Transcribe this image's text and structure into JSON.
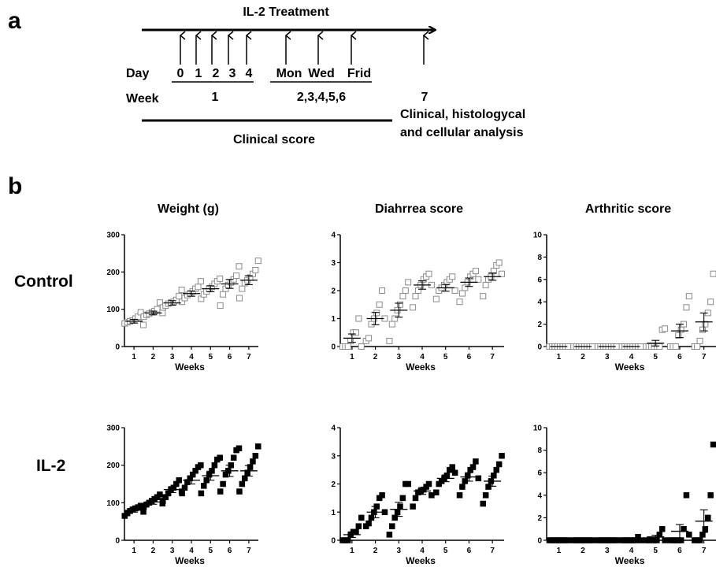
{
  "panel_a": {
    "letter": "a",
    "title": "IL-2 Treatment",
    "day_label": "Day",
    "week_label": "Week",
    "days": [
      "0",
      "1",
      "2",
      "3",
      "4",
      "Mon",
      "Wed",
      "Frid"
    ],
    "week1": "1",
    "weeks_rest": "2,3,4,5,6",
    "week_final": "7",
    "analysis_line1": "Clinical, histologycal",
    "analysis_line2": "and cellular analysis",
    "clinical_score": "Clinical score"
  },
  "panel_b": {
    "letter": "b",
    "row_labels": [
      "Control",
      "IL-2"
    ]
  },
  "chart_data": [
    {
      "type": "scatter",
      "title": "Weight  (g)",
      "row": "Control",
      "xlabel": "Weeks",
      "x": [
        1,
        2,
        3,
        4,
        5,
        6,
        7
      ],
      "ylim": [
        0,
        300
      ],
      "yticks": [
        0,
        100,
        200,
        300
      ],
      "marker": "open-square",
      "mean": [
        68,
        90,
        117,
        142,
        155,
        168,
        178
      ],
      "sem": [
        5,
        5,
        6,
        7,
        8,
        12,
        12
      ],
      "points": [
        [
          62,
          65,
          68,
          70,
          75,
          80,
          92,
          58
        ],
        [
          80,
          85,
          88,
          92,
          95,
          100,
          118,
          90
        ],
        [
          105,
          110,
          115,
          118,
          120,
          125,
          135,
          152
        ],
        [
          120,
          130,
          138,
          142,
          148,
          155,
          160,
          175
        ],
        [
          128,
          140,
          148,
          155,
          160,
          168,
          175,
          182
        ],
        [
          110,
          140,
          155,
          165,
          172,
          180,
          190,
          215
        ],
        [
          130,
          155,
          170,
          178,
          185,
          195,
          205,
          230
        ]
      ]
    },
    {
      "type": "scatter",
      "title": "Diahrrea score",
      "row": "Control",
      "xlabel": "Weeks",
      "x": [
        1,
        2,
        3,
        4,
        5,
        6,
        7
      ],
      "ylim": [
        0,
        4
      ],
      "yticks": [
        0,
        1,
        2,
        3,
        4
      ],
      "marker": "open-square",
      "mean": [
        0.3,
        1.0,
        1.3,
        2.2,
        2.1,
        2.3,
        2.5
      ],
      "sem": [
        0.15,
        0.22,
        0.25,
        0.15,
        0.12,
        0.15,
        0.13
      ],
      "points": [
        [
          0,
          0,
          0,
          0.2,
          0.5,
          0.5,
          1.0,
          0
        ],
        [
          0.2,
          0.3,
          0.8,
          1.0,
          1.2,
          1.5,
          2.0,
          1.0
        ],
        [
          0.2,
          0.8,
          1.0,
          1.3,
          1.5,
          1.8,
          2.0,
          2.3
        ],
        [
          1.4,
          1.8,
          2.0,
          2.2,
          2.4,
          2.5,
          2.6,
          2.2
        ],
        [
          1.7,
          2.0,
          2.1,
          2.2,
          2.3,
          2.4,
          2.5,
          2.0
        ],
        [
          1.6,
          1.9,
          2.1,
          2.3,
          2.5,
          2.6,
          2.7,
          2.4
        ],
        [
          1.8,
          2.2,
          2.4,
          2.5,
          2.7,
          2.9,
          3.0,
          2.6
        ]
      ]
    },
    {
      "type": "scatter",
      "title": "Arthritic score",
      "row": "Control",
      "xlabel": "Weeks",
      "x": [
        1,
        2,
        3,
        4,
        5,
        6,
        7
      ],
      "ylim": [
        0,
        10
      ],
      "yticks": [
        0,
        2,
        4,
        6,
        8,
        10
      ],
      "marker": "open-square",
      "mean": [
        0,
        0,
        0,
        0,
        0.3,
        1.4,
        2.2
      ],
      "sem": [
        0,
        0,
        0,
        0,
        0.25,
        0.6,
        0.8
      ],
      "points": [
        [
          0,
          0,
          0,
          0,
          0,
          0,
          0,
          0
        ],
        [
          0,
          0,
          0,
          0,
          0,
          0,
          0,
          0
        ],
        [
          0,
          0,
          0,
          0,
          0,
          0,
          0,
          0
        ],
        [
          0,
          0,
          0,
          0,
          0,
          0,
          0,
          0
        ],
        [
          0,
          0,
          0,
          0,
          0,
          0,
          1.5,
          1.6
        ],
        [
          0,
          0,
          0,
          1.0,
          1.5,
          2.0,
          3.5,
          4.5
        ],
        [
          0,
          0,
          0.5,
          1.5,
          2.0,
          3.0,
          4.0,
          6.5
        ]
      ]
    },
    {
      "type": "scatter",
      "title": "",
      "row": "IL-2",
      "xlabel": "Weeks",
      "x": [
        1,
        2,
        3,
        4,
        5,
        6,
        7
      ],
      "ylim": [
        0,
        300
      ],
      "yticks": [
        0,
        100,
        200,
        300
      ],
      "marker": "filled-square",
      "mean": [
        80,
        102,
        135,
        160,
        172,
        185,
        185
      ],
      "sem": [
        5,
        6,
        8,
        10,
        12,
        15,
        14
      ],
      "points": [
        [
          65,
          72,
          78,
          82,
          85,
          88,
          92,
          76
        ],
        [
          88,
          95,
          100,
          105,
          110,
          115,
          122,
          98
        ],
        [
          105,
          115,
          125,
          135,
          140,
          150,
          160,
          130
        ],
        [
          125,
          140,
          155,
          165,
          175,
          185,
          195,
          200
        ],
        [
          125,
          145,
          160,
          175,
          185,
          200,
          215,
          220
        ],
        [
          130,
          150,
          175,
          185,
          200,
          220,
          240,
          245
        ],
        [
          130,
          150,
          165,
          180,
          195,
          210,
          225,
          250
        ]
      ]
    },
    {
      "type": "scatter",
      "title": "",
      "row": "IL-2",
      "xlabel": "Weeks",
      "x": [
        1,
        2,
        3,
        4,
        5,
        6,
        7
      ],
      "ylim": [
        0,
        4
      ],
      "yticks": [
        0,
        1,
        2,
        3,
        4
      ],
      "marker": "filled-square",
      "mean": [
        0.2,
        1.0,
        1.1,
        1.75,
        2.2,
        2.25,
        2.1
      ],
      "sem": [
        0.1,
        0.2,
        0.25,
        0.12,
        0.12,
        0.15,
        0.18
      ],
      "points": [
        [
          0,
          0,
          0,
          0.2,
          0.3,
          0.3,
          0.5,
          0.8
        ],
        [
          0.5,
          0.6,
          0.8,
          1.0,
          1.2,
          1.5,
          1.6,
          1.0
        ],
        [
          0.2,
          0.5,
          0.8,
          1.0,
          1.2,
          1.5,
          2.0,
          2.0
        ],
        [
          1.2,
          1.5,
          1.7,
          1.75,
          1.8,
          1.9,
          2.0,
          1.6
        ],
        [
          1.7,
          2.0,
          2.1,
          2.2,
          2.3,
          2.5,
          2.6,
          2.4
        ],
        [
          1.6,
          1.9,
          2.1,
          2.3,
          2.5,
          2.6,
          2.8,
          2.2
        ],
        [
          1.3,
          1.6,
          1.9,
          2.1,
          2.3,
          2.5,
          2.7,
          3.0
        ]
      ]
    },
    {
      "type": "scatter",
      "title": "",
      "row": "IL-2",
      "xlabel": "Weeks",
      "x": [
        1,
        2,
        3,
        4,
        5,
        6,
        7
      ],
      "ylim": [
        0,
        10
      ],
      "yticks": [
        0,
        2,
        4,
        6,
        8,
        10
      ],
      "marker": "filled-square",
      "mean": [
        0,
        0,
        0,
        0.1,
        0.3,
        0.8,
        1.7
      ],
      "sem": [
        0,
        0,
        0,
        0.05,
        0.15,
        0.6,
        1.0
      ],
      "points": [
        [
          0,
          0,
          0,
          0,
          0,
          0,
          0,
          0
        ],
        [
          0,
          0,
          0,
          0,
          0,
          0,
          0,
          0
        ],
        [
          0,
          0,
          0,
          0,
          0,
          0,
          0,
          0
        ],
        [
          0,
          0,
          0,
          0,
          0,
          0,
          0.3,
          0
        ],
        [
          0,
          0,
          0,
          0,
          0,
          0.5,
          1.0,
          0
        ],
        [
          0,
          0,
          0,
          0,
          0,
          1.0,
          4.0,
          0.5
        ],
        [
          0,
          0,
          0,
          0.5,
          1.0,
          2.0,
          4.0,
          8.5
        ]
      ]
    }
  ]
}
